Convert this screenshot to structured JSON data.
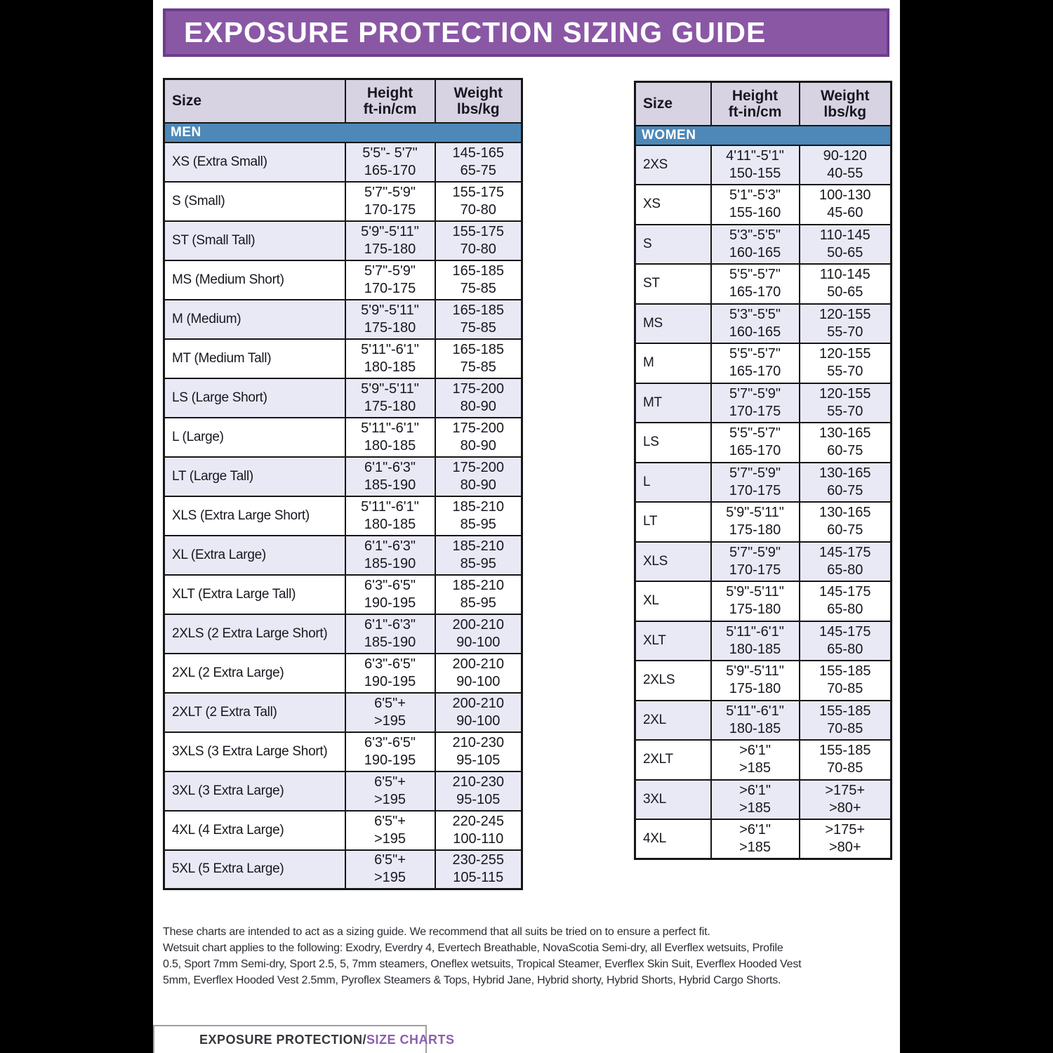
{
  "banner": {
    "title": "EXPOSURE PROTECTION SIZING GUIDE",
    "bg_color": "#8a57a5",
    "border_color": "#6d3d8c"
  },
  "columns": {
    "size": "Size",
    "height_line1": "Height",
    "height_line2": "ft-in/cm",
    "weight_line1": "Weight",
    "weight_line2": "lbs/kg"
  },
  "colors": {
    "section_band_blue": "#4d88b8",
    "header_lavender": "#d8d3e3",
    "row_alt_lavender": "#e9e9f5",
    "accent_purple": "#8a57a5"
  },
  "men": {
    "section": "MEN",
    "rows": [
      {
        "size": "XS (Extra Small)",
        "height": [
          "5'5\"- 5'7\"",
          "165-170"
        ],
        "weight": [
          "145-165",
          "65-75"
        ]
      },
      {
        "size": "S (Small)",
        "height": [
          "5'7\"-5'9\"",
          "170-175"
        ],
        "weight": [
          "155-175",
          "70-80"
        ]
      },
      {
        "size": "ST (Small Tall)",
        "height": [
          "5'9\"-5'11\"",
          "175-180"
        ],
        "weight": [
          "155-175",
          "70-80"
        ]
      },
      {
        "size": "MS (Medium Short)",
        "height": [
          "5'7\"-5'9\"",
          "170-175"
        ],
        "weight": [
          "165-185",
          "75-85"
        ]
      },
      {
        "size": "M (Medium)",
        "height": [
          "5'9\"-5'11\"",
          "175-180"
        ],
        "weight": [
          "165-185",
          "75-85"
        ]
      },
      {
        "size": "MT (Medium Tall)",
        "height": [
          "5'11\"-6'1\"",
          "180-185"
        ],
        "weight": [
          "165-185",
          "75-85"
        ]
      },
      {
        "size": "LS (Large Short)",
        "height": [
          "5'9\"-5'11\"",
          "175-180"
        ],
        "weight": [
          "175-200",
          "80-90"
        ]
      },
      {
        "size": "L (Large)",
        "height": [
          "5'11\"-6'1\"",
          "180-185"
        ],
        "weight": [
          "175-200",
          "80-90"
        ]
      },
      {
        "size": "LT (Large Tall)",
        "height": [
          "6'1\"-6'3\"",
          "185-190"
        ],
        "weight": [
          "175-200",
          "80-90"
        ]
      },
      {
        "size": "XLS (Extra Large Short)",
        "height": [
          "5'11\"-6'1\"",
          "180-185"
        ],
        "weight": [
          "185-210",
          "85-95"
        ]
      },
      {
        "size": "XL (Extra Large)",
        "height": [
          "6'1\"-6'3\"",
          "185-190"
        ],
        "weight": [
          "185-210",
          "85-95"
        ]
      },
      {
        "size": "XLT (Extra Large Tall)",
        "height": [
          "6'3\"-6'5\"",
          "190-195"
        ],
        "weight": [
          "185-210",
          "85-95"
        ]
      },
      {
        "size": "2XLS (2 Extra Large Short)",
        "height": [
          "6'1\"-6'3\"",
          "185-190"
        ],
        "weight": [
          "200-210",
          "90-100"
        ]
      },
      {
        "size": "2XL (2 Extra Large)",
        "height": [
          "6'3\"-6'5\"",
          "190-195"
        ],
        "weight": [
          "200-210",
          "90-100"
        ]
      },
      {
        "size": "2XLT (2 Extra Tall)",
        "height": [
          "6'5\"+",
          ">195"
        ],
        "weight": [
          "200-210",
          "90-100"
        ]
      },
      {
        "size": "3XLS (3 Extra Large Short)",
        "height": [
          "6'3\"-6'5\"",
          "190-195"
        ],
        "weight": [
          "210-230",
          "95-105"
        ]
      },
      {
        "size": "3XL (3 Extra Large)",
        "height": [
          "6'5\"+",
          ">195"
        ],
        "weight": [
          "210-230",
          "95-105"
        ]
      },
      {
        "size": "4XL (4 Extra Large)",
        "height": [
          "6'5\"+",
          ">195"
        ],
        "weight": [
          "220-245",
          "100-110"
        ]
      },
      {
        "size": "5XL (5 Extra Large)",
        "height": [
          "6'5\"+",
          ">195"
        ],
        "weight": [
          "230-255",
          "105-115"
        ]
      }
    ]
  },
  "women": {
    "section": "WOMEN",
    "rows": [
      {
        "size": "2XS",
        "height": [
          "4'11\"-5'1\"",
          "150-155"
        ],
        "weight": [
          "90-120",
          "40-55"
        ]
      },
      {
        "size": "XS",
        "height": [
          "5'1\"-5'3\"",
          "155-160"
        ],
        "weight": [
          "100-130",
          "45-60"
        ]
      },
      {
        "size": "S",
        "height": [
          "5'3\"-5'5\"",
          "160-165"
        ],
        "weight": [
          "110-145",
          "50-65"
        ]
      },
      {
        "size": "ST",
        "height": [
          "5'5\"-5'7\"",
          "165-170"
        ],
        "weight": [
          "110-145",
          "50-65"
        ]
      },
      {
        "size": "MS",
        "height": [
          "5'3\"-5'5\"",
          "160-165"
        ],
        "weight": [
          "120-155",
          "55-70"
        ]
      },
      {
        "size": "M",
        "height": [
          "5'5\"-5'7\"",
          "165-170"
        ],
        "weight": [
          "120-155",
          "55-70"
        ]
      },
      {
        "size": "MT",
        "height": [
          "5'7\"-5'9\"",
          "170-175"
        ],
        "weight": [
          "120-155",
          "55-70"
        ]
      },
      {
        "size": "LS",
        "height": [
          "5'5\"-5'7\"",
          "165-170"
        ],
        "weight": [
          "130-165",
          "60-75"
        ]
      },
      {
        "size": "L",
        "height": [
          "5'7\"-5'9\"",
          "170-175"
        ],
        "weight": [
          "130-165",
          "60-75"
        ]
      },
      {
        "size": "LT",
        "height": [
          "5'9\"-5'11\"",
          "175-180"
        ],
        "weight": [
          "130-165",
          "60-75"
        ]
      },
      {
        "size": "XLS",
        "height": [
          "5'7\"-5'9\"",
          "170-175"
        ],
        "weight": [
          "145-175",
          "65-80"
        ]
      },
      {
        "size": "XL",
        "height": [
          "5'9\"-5'11\"",
          "175-180"
        ],
        "weight": [
          "145-175",
          "65-80"
        ]
      },
      {
        "size": "XLT",
        "height": [
          "5'11\"-6'1\"",
          "180-185"
        ],
        "weight": [
          "145-175",
          "65-80"
        ]
      },
      {
        "size": "2XLS",
        "height": [
          "5'9\"-5'11\"",
          "175-180"
        ],
        "weight": [
          "155-185",
          "70-85"
        ]
      },
      {
        "size": "2XL",
        "height": [
          "5'11\"-6'1\"",
          "180-185"
        ],
        "weight": [
          "155-185",
          "70-85"
        ]
      },
      {
        "size": "2XLT",
        "height": [
          ">6'1\"",
          ">185"
        ],
        "weight": [
          "155-185",
          "70-85"
        ]
      },
      {
        "size": "3XL",
        "height": [
          ">6'1\"",
          ">185"
        ],
        "weight": [
          ">175+",
          ">80+"
        ]
      },
      {
        "size": "4XL",
        "height": [
          ">6'1\"",
          ">185"
        ],
        "weight": [
          ">175+",
          ">80+"
        ]
      }
    ]
  },
  "notes": {
    "lines": [
      "These charts are intended to act as a sizing guide. We recommend that all suits be tried on to ensure a perfect fit.",
      "Wetsuit chart applies to the following: Exodry, Everdry 4, Evertech Breathable, NovaScotia Semi-dry, all Everflex wetsuits, Profile",
      "0.5, Sport 7mm Semi-dry, Sport 2.5, 5, 7mm steamers, Oneflex wetsuits, Tropical Steamer, Everflex Skin Suit, Everflex Hooded Vest",
      "5mm, Everflex Hooded Vest 2.5mm, Pyroflex Steamers & Tops, Hybrid Jane, Hybrid shorty, Hybrid Shorts, Hybrid Cargo Shorts."
    ]
  },
  "footer": {
    "left": "EXPOSURE PROTECTION",
    "slash": "/",
    "right": "SIZE CHARTS"
  }
}
